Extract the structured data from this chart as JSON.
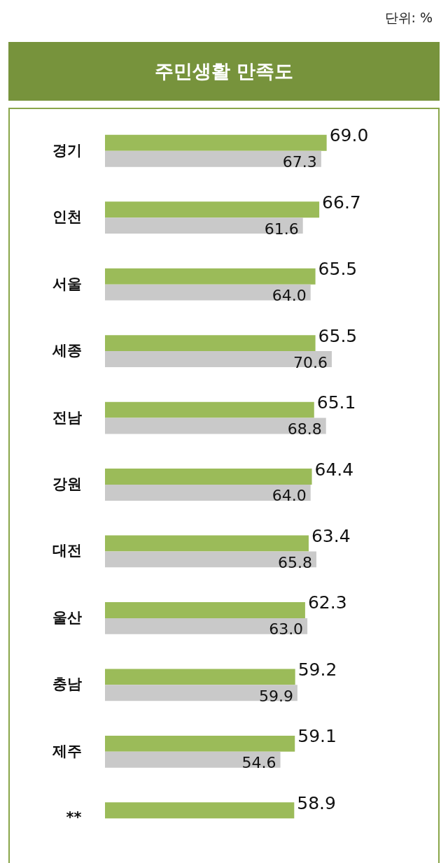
{
  "chart_data": {
    "type": "bar",
    "orientation": "horizontal",
    "title": "주민생활 만족도",
    "annotations": [
      "단위: %"
    ],
    "categories": [
      "경기",
      "인천",
      "서울",
      "세종",
      "전남",
      "강원",
      "대전",
      "울산",
      "충남",
      "제주",
      "**"
    ],
    "series": [
      {
        "color": "#9bbb59",
        "values": [
          69.0,
          66.7,
          65.5,
          65.5,
          65.1,
          64.4,
          63.4,
          62.3,
          59.2,
          59.1,
          58.9
        ],
        "value_labels": [
          "69.0",
          "66.7",
          "65.5",
          "65.5",
          "65.1",
          "64.4",
          "63.4",
          "62.3",
          "59.2",
          "59.1",
          "58.9"
        ]
      },
      {
        "color": "#c9c9c9",
        "values": [
          67.3,
          61.6,
          64.0,
          70.6,
          68.8,
          64.0,
          65.8,
          63.0,
          59.9,
          54.6,
          null
        ],
        "value_labels": [
          "67.3",
          "61.6",
          "64.0",
          "70.6",
          "68.8",
          "64.0",
          "65.8",
          "63.0",
          "59.9",
          "54.6",
          null
        ]
      }
    ]
  }
}
